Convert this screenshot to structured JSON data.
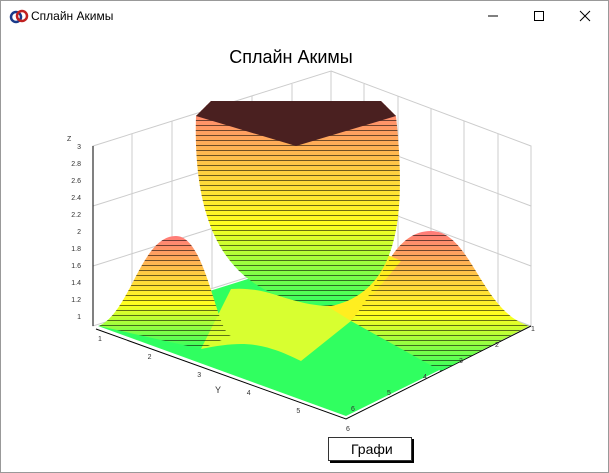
{
  "window": {
    "title": "Сплайн Акимы",
    "button": "Графи"
  },
  "plot": {
    "title": "Сплайн Акимы",
    "z_label": "Z",
    "y_label": "Y",
    "z_ticks": [
      "1",
      "1.2",
      "1.4",
      "1.6",
      "1.8",
      "2",
      "2.2",
      "2.4",
      "2.6",
      "2.8",
      "3"
    ],
    "y_ticks": [
      "1",
      "2",
      "3",
      "4",
      "5",
      "6"
    ],
    "x_ticks": [
      "1",
      "2",
      "3",
      "4",
      "5",
      "6"
    ]
  }
}
